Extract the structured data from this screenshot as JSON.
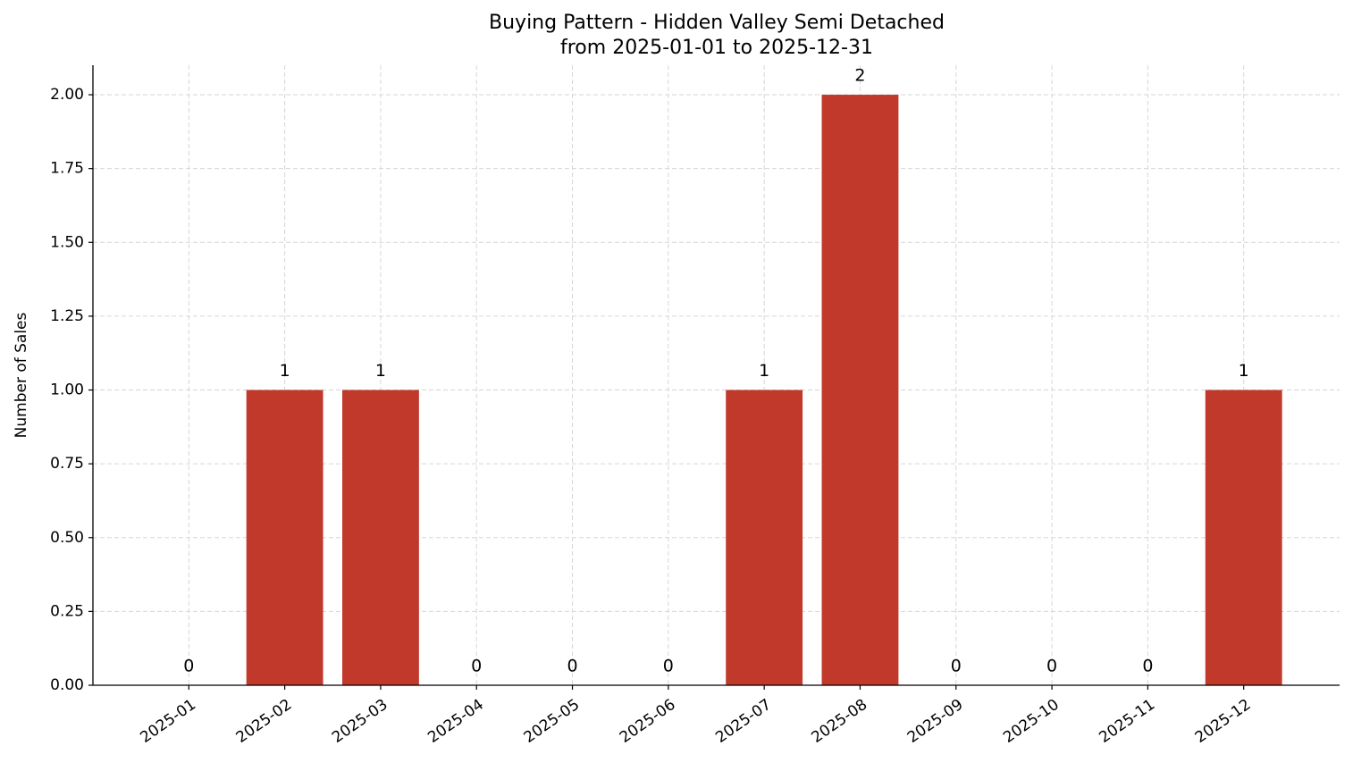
{
  "chart_data": {
    "type": "bar",
    "title": "Buying Pattern - Hidden Valley Semi Detached",
    "subtitle": "from 2025-01-01 to 2025-12-31",
    "y_label": "Number of Sales",
    "categories": [
      "2025-01",
      "2025-02",
      "2025-03",
      "2025-04",
      "2025-05",
      "2025-06",
      "2025-07",
      "2025-08",
      "2025-09",
      "2025-10",
      "2025-11",
      "2025-12"
    ],
    "values": [
      0,
      1,
      1,
      0,
      0,
      0,
      1,
      2,
      0,
      0,
      0,
      1
    ],
    "color": "#c0392b",
    "ylim": [
      0,
      2.1
    ],
    "yticks": [
      {
        "value": 0,
        "label": "0.00"
      },
      {
        "value": 0.25,
        "label": "0.25"
      },
      {
        "value": 0.5,
        "label": "0.50"
      },
      {
        "value": 0.75,
        "label": "0.75"
      },
      {
        "value": 1,
        "label": "1.00"
      },
      {
        "value": 1.25,
        "label": "1.25"
      },
      {
        "value": 1.5,
        "label": "1.50"
      },
      {
        "value": 1.75,
        "label": "1.75"
      },
      {
        "value": 2,
        "label": "2.00"
      }
    ],
    "grid": true
  }
}
